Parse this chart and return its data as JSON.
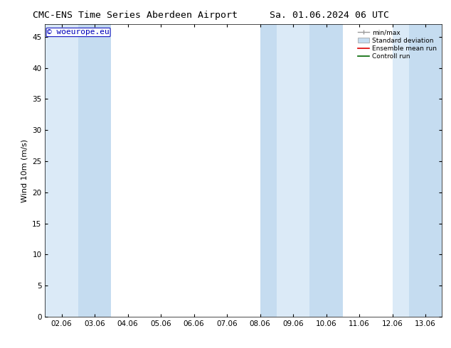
{
  "title_left": "CMC-ENS Time Series Aberdeen Airport",
  "title_right": "Sa. 01.06.2024 06 UTC",
  "ylabel": "Wind 10m (m/s)",
  "watermark": "© woeurope.eu",
  "xlim": [
    1.5,
    13.5
  ],
  "ylim": [
    0,
    47
  ],
  "yticks": [
    0,
    5,
    10,
    15,
    20,
    25,
    30,
    35,
    40,
    45
  ],
  "xtick_labels": [
    "02.06",
    "03.06",
    "04.06",
    "05.06",
    "06.06",
    "07.06",
    "08.06",
    "09.06",
    "10.06",
    "11.06",
    "12.06",
    "13.06"
  ],
  "xtick_positions": [
    2,
    3,
    4,
    5,
    6,
    7,
    8,
    9,
    10,
    11,
    12,
    13
  ],
  "shaded_bands": [
    [
      1.5,
      2.5
    ],
    [
      2.5,
      3.5
    ],
    [
      8.0,
      8.5
    ],
    [
      8.5,
      9.5
    ],
    [
      9.5,
      10.5
    ],
    [
      12.0,
      12.5
    ],
    [
      12.5,
      13.5
    ]
  ],
  "shaded_colors": [
    "#dbeaf7",
    "#c5dcf0",
    "#c5dcf0",
    "#dbeaf7",
    "#c5dcf0",
    "#dbeaf7",
    "#c5dcf0"
  ],
  "bg_color": "#ffffff",
  "plot_bg_color": "#ffffff",
  "legend_items": [
    {
      "label": "min/max",
      "color": "#999999",
      "type": "line_with_caps"
    },
    {
      "label": "Standard deviation",
      "color": "#c5dcf0",
      "type": "box"
    },
    {
      "label": "Ensemble mean run",
      "color": "#dd0000",
      "type": "line"
    },
    {
      "label": "Controll run",
      "color": "#006600",
      "type": "line"
    }
  ],
  "title_fontsize": 9.5,
  "axis_fontsize": 8,
  "tick_fontsize": 7.5,
  "watermark_color": "#0000bb",
  "watermark_fontsize": 8
}
